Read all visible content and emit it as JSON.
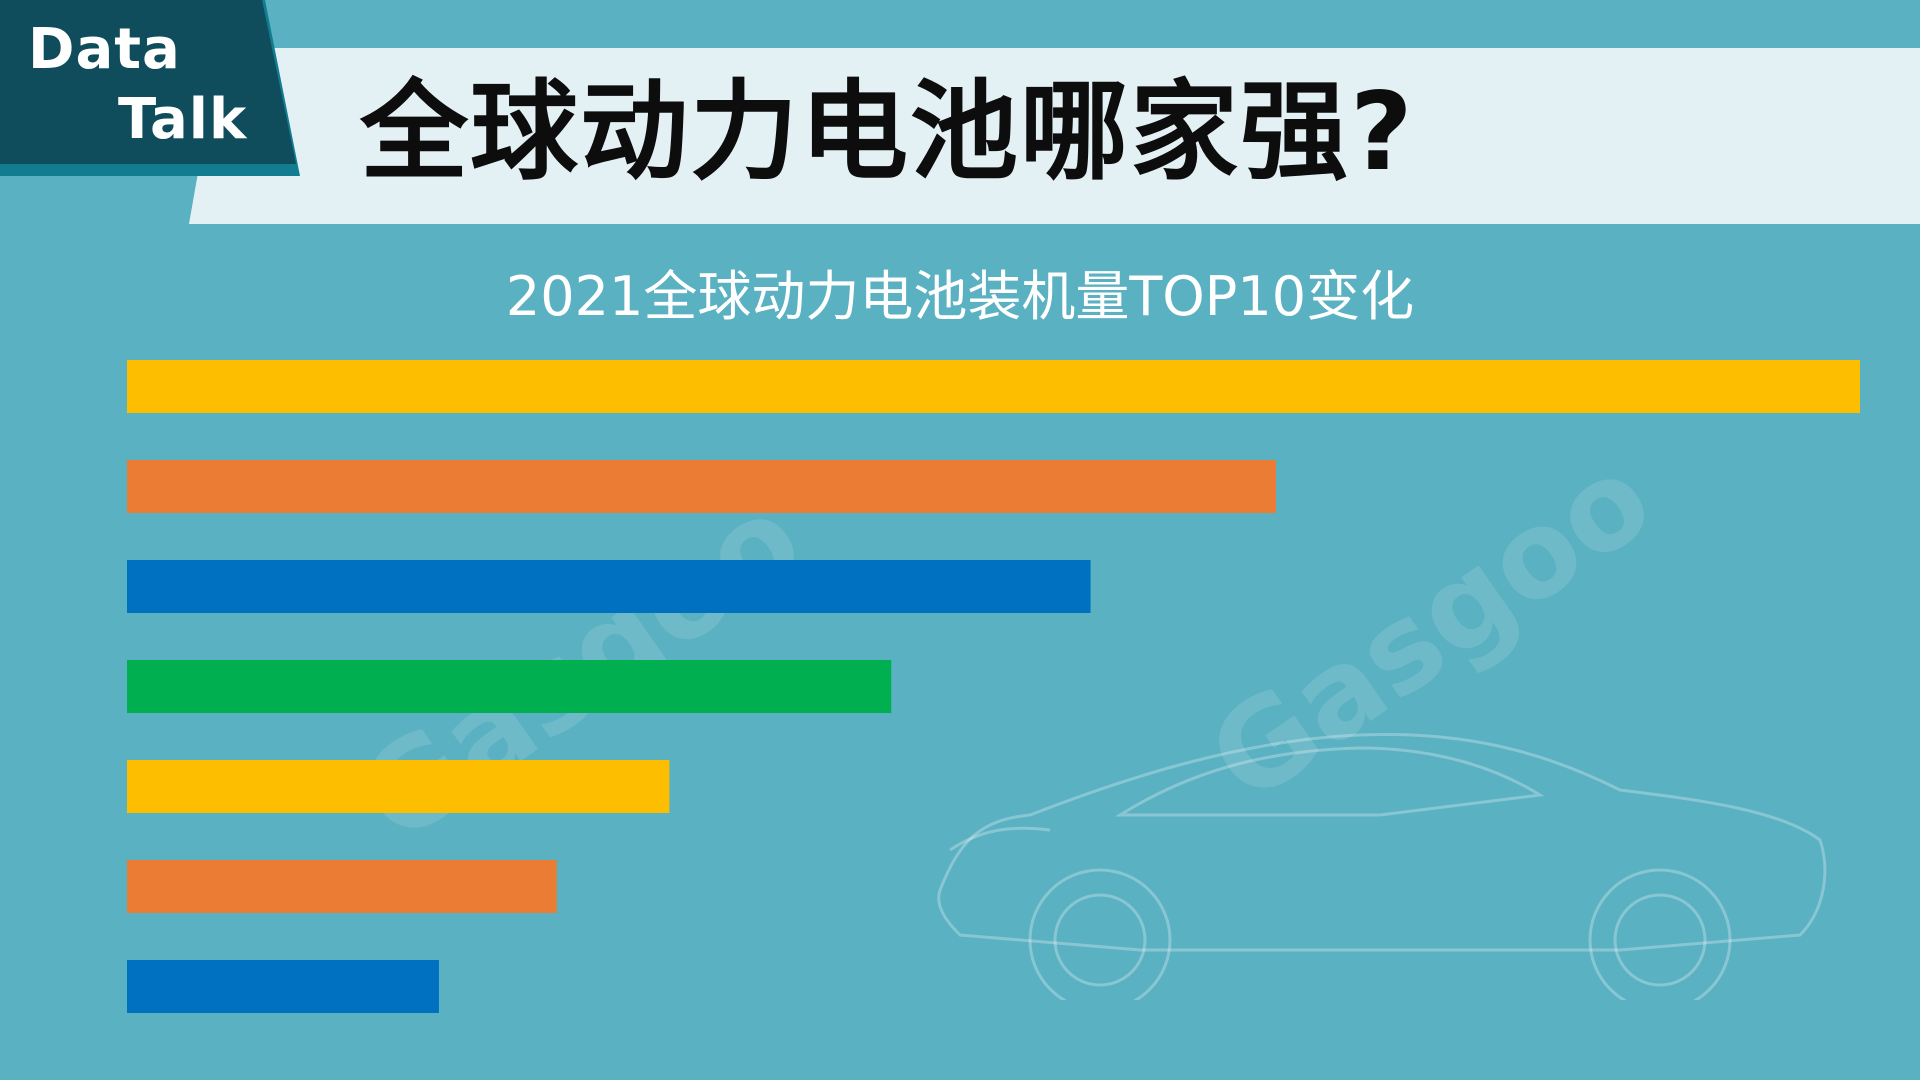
{
  "badge": {
    "line1": "Data",
    "line2": "Talk"
  },
  "title": "全球动力电池哪家强?",
  "subtitle": "2021全球动力电池装机量TOP10变化",
  "colors": {
    "yellow": "#fdbe00",
    "orange": "#ea7c34",
    "blue": "#0070c0",
    "green": "#00b050"
  },
  "chart_data": {
    "type": "bar",
    "orientation": "horizontal",
    "title": "2021全球动力电池装机量TOP10变化",
    "xlabel": "",
    "ylabel": "",
    "grid": false,
    "legend": "none",
    "xlim": [
      0,
      100
    ],
    "series": [
      {
        "values": [
          100,
          66.3,
          55.6,
          44.1,
          31.3,
          24.8,
          18.0
        ],
        "colors": [
          "#fdbe00",
          "#ea7c34",
          "#0070c0",
          "#00b050",
          "#fdbe00",
          "#ea7c34",
          "#0070c0"
        ]
      }
    ]
  }
}
